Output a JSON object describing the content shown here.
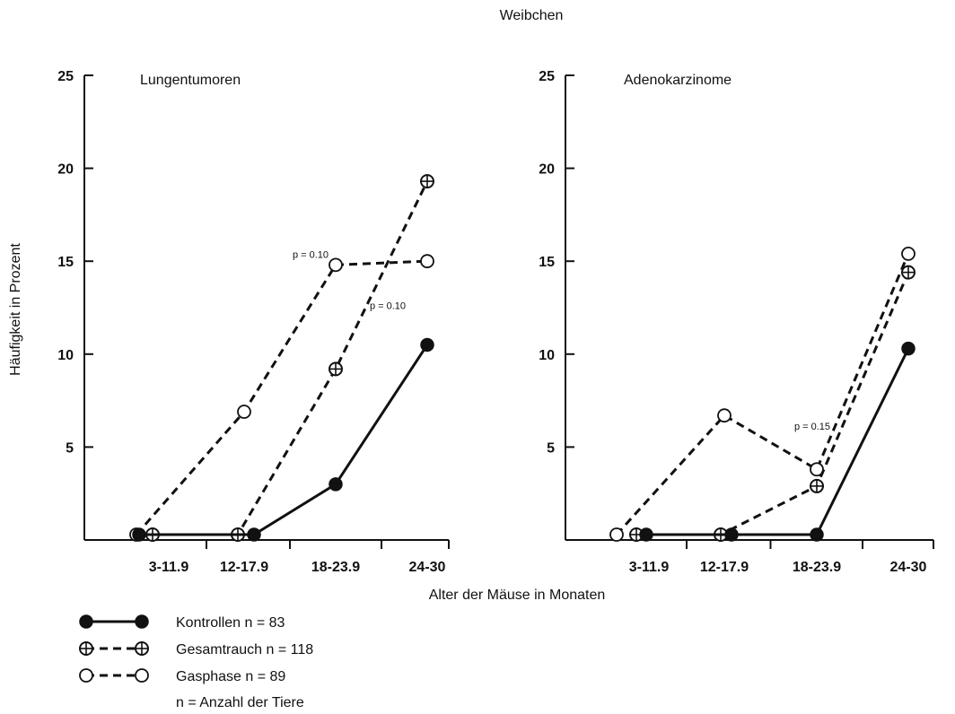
{
  "figure": {
    "title": "Weibchen",
    "xlabel": "Alter der Mäuse in Monaten",
    "ylabel": "Häufigkeit in Prozent",
    "footnote": "n = Anzahl der Tiere"
  },
  "legend": [
    {
      "label": "Kontrollen n = 83",
      "marker": "filled",
      "line": "solid"
    },
    {
      "label": "Gesamtrauch n = 118",
      "marker": "crossed",
      "line": "dashed"
    },
    {
      "label": "Gasphase n = 89",
      "marker": "open",
      "line": "dashed"
    }
  ],
  "chart_data": [
    {
      "type": "line",
      "title": "Lungentumoren",
      "categories": [
        "3-11.9",
        "12-17.9",
        "18-23.9",
        "24-30"
      ],
      "yticks": [
        5,
        10,
        15,
        20,
        25
      ],
      "ylim": [
        0,
        25
      ],
      "grid": false,
      "series": [
        {
          "name": "Kontrollen n = 83",
          "marker": "filled",
          "line": "solid",
          "values": [
            0,
            0,
            3.0,
            10.5
          ]
        },
        {
          "name": "Gesamtrauch n = 118",
          "marker": "crossed",
          "line": "dashed",
          "values": [
            0,
            0,
            9.2,
            19.3
          ]
        },
        {
          "name": "Gasphase n = 89",
          "marker": "open",
          "line": "dashed",
          "values": [
            0,
            6.9,
            14.8,
            15.0
          ]
        }
      ],
      "annotations": [
        {
          "text": "p = 0.10",
          "series": "Gasphase n = 89",
          "category": "18-23.9"
        },
        {
          "text": "p = 0.10",
          "series": "Gesamtrauch n = 118",
          "category": "18-23.9"
        }
      ]
    },
    {
      "type": "line",
      "title": "Adenokarzinome",
      "categories": [
        "3-11.9",
        "12-17.9",
        "18-23.9",
        "24-30"
      ],
      "yticks": [
        5,
        10,
        15,
        20,
        25
      ],
      "ylim": [
        0,
        25
      ],
      "grid": false,
      "series": [
        {
          "name": "Kontrollen n = 83",
          "marker": "filled",
          "line": "solid",
          "values": [
            0,
            0,
            0,
            10.3
          ]
        },
        {
          "name": "Gesamtrauch n = 118",
          "marker": "crossed",
          "line": "dashed",
          "values": [
            0,
            0,
            2.9,
            14.4
          ]
        },
        {
          "name": "Gasphase n = 89",
          "marker": "open",
          "line": "dashed",
          "values": [
            0,
            6.7,
            3.8,
            15.4
          ]
        }
      ],
      "annotations": [
        {
          "text": "p = 0.15",
          "series": "Gasphase n = 89",
          "category": "12-17.9"
        }
      ]
    }
  ]
}
